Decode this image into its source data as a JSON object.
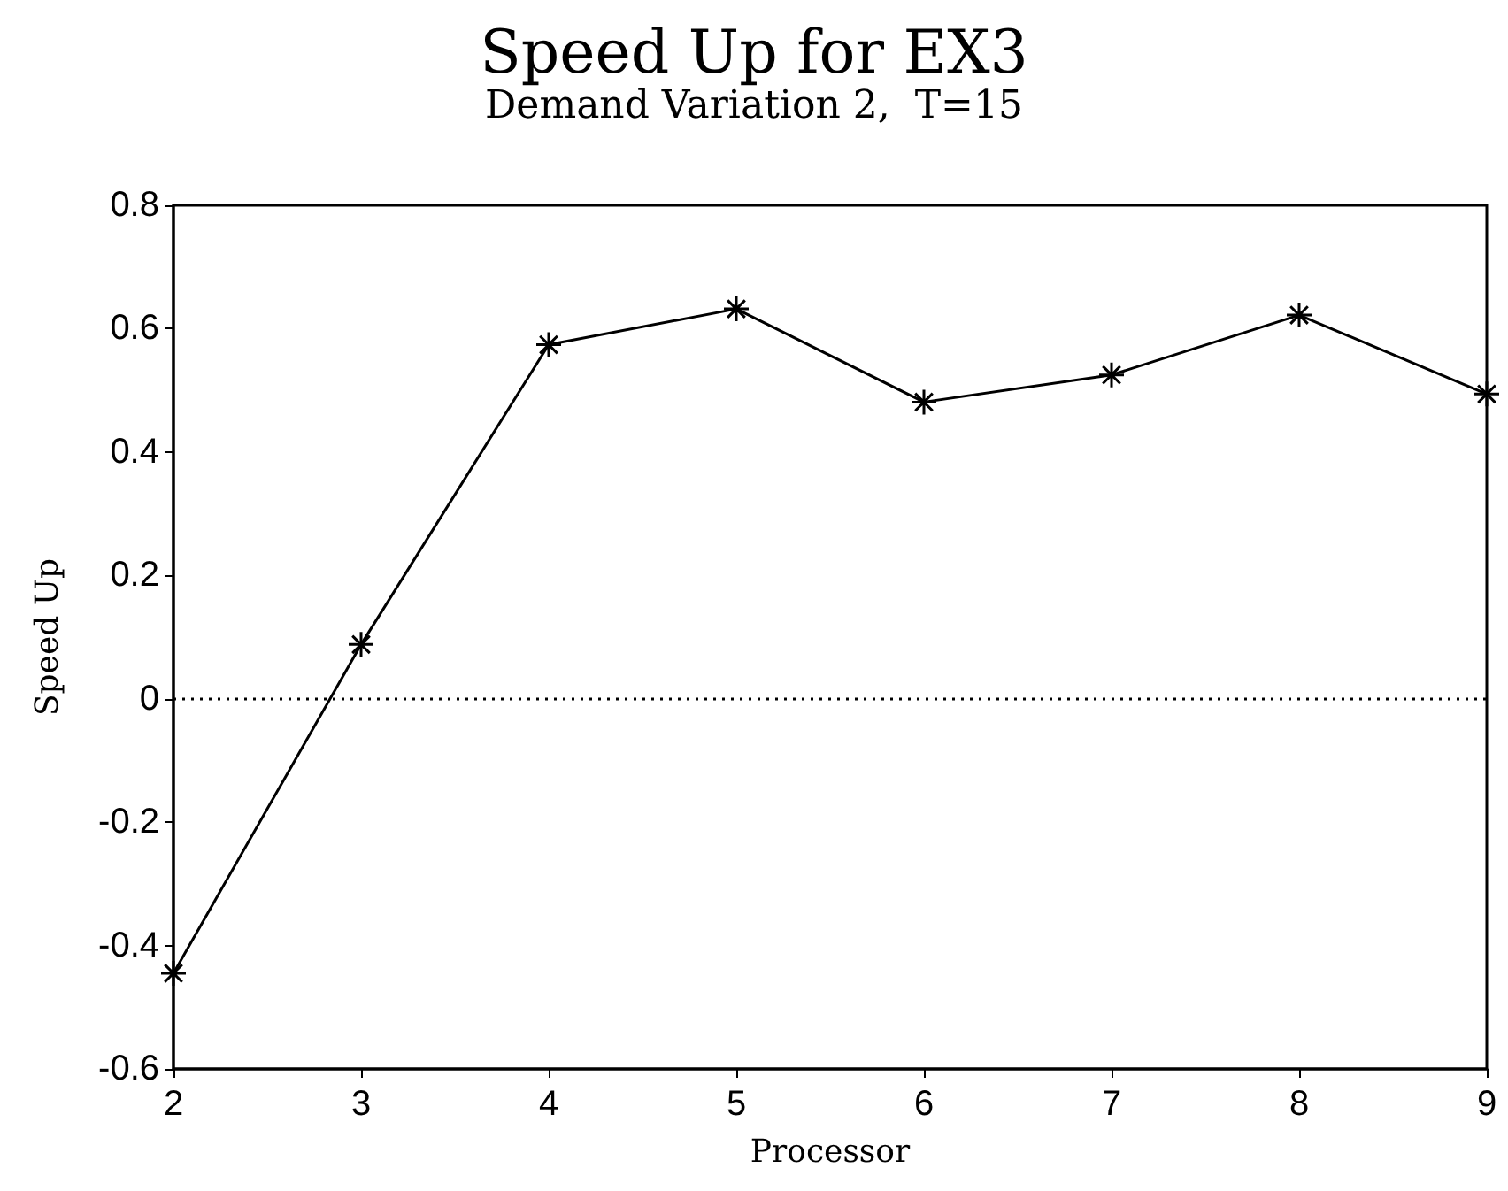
{
  "chart_data": {
    "type": "line",
    "title": "Speed Up for EX3",
    "subtitle": "Demand Variation 2,  T=15",
    "xlabel": "Processor",
    "ylabel": "Speed Up",
    "x": [
      2,
      3,
      4,
      5,
      6,
      7,
      8,
      9
    ],
    "series": [
      {
        "color": "#000000",
        "values": [
          -0.445,
          0.088,
          0.574,
          0.632,
          0.481,
          0.525,
          0.622,
          0.494
        ]
      }
    ],
    "xlim": [
      2,
      9
    ],
    "xticks": [
      2,
      3,
      4,
      5,
      6,
      7,
      8,
      9
    ],
    "ylim": [
      -0.6,
      0.8
    ],
    "yticks": [
      -0.6,
      -0.4,
      -0.2,
      0,
      0.2,
      0.4,
      0.6,
      0.8
    ],
    "ref_lines": [
      {
        "axis": "y",
        "value": 0,
        "line_style": "dotted",
        "color": "#000000"
      }
    ],
    "marker": "cross",
    "line_style": "solid",
    "grid": false
  }
}
